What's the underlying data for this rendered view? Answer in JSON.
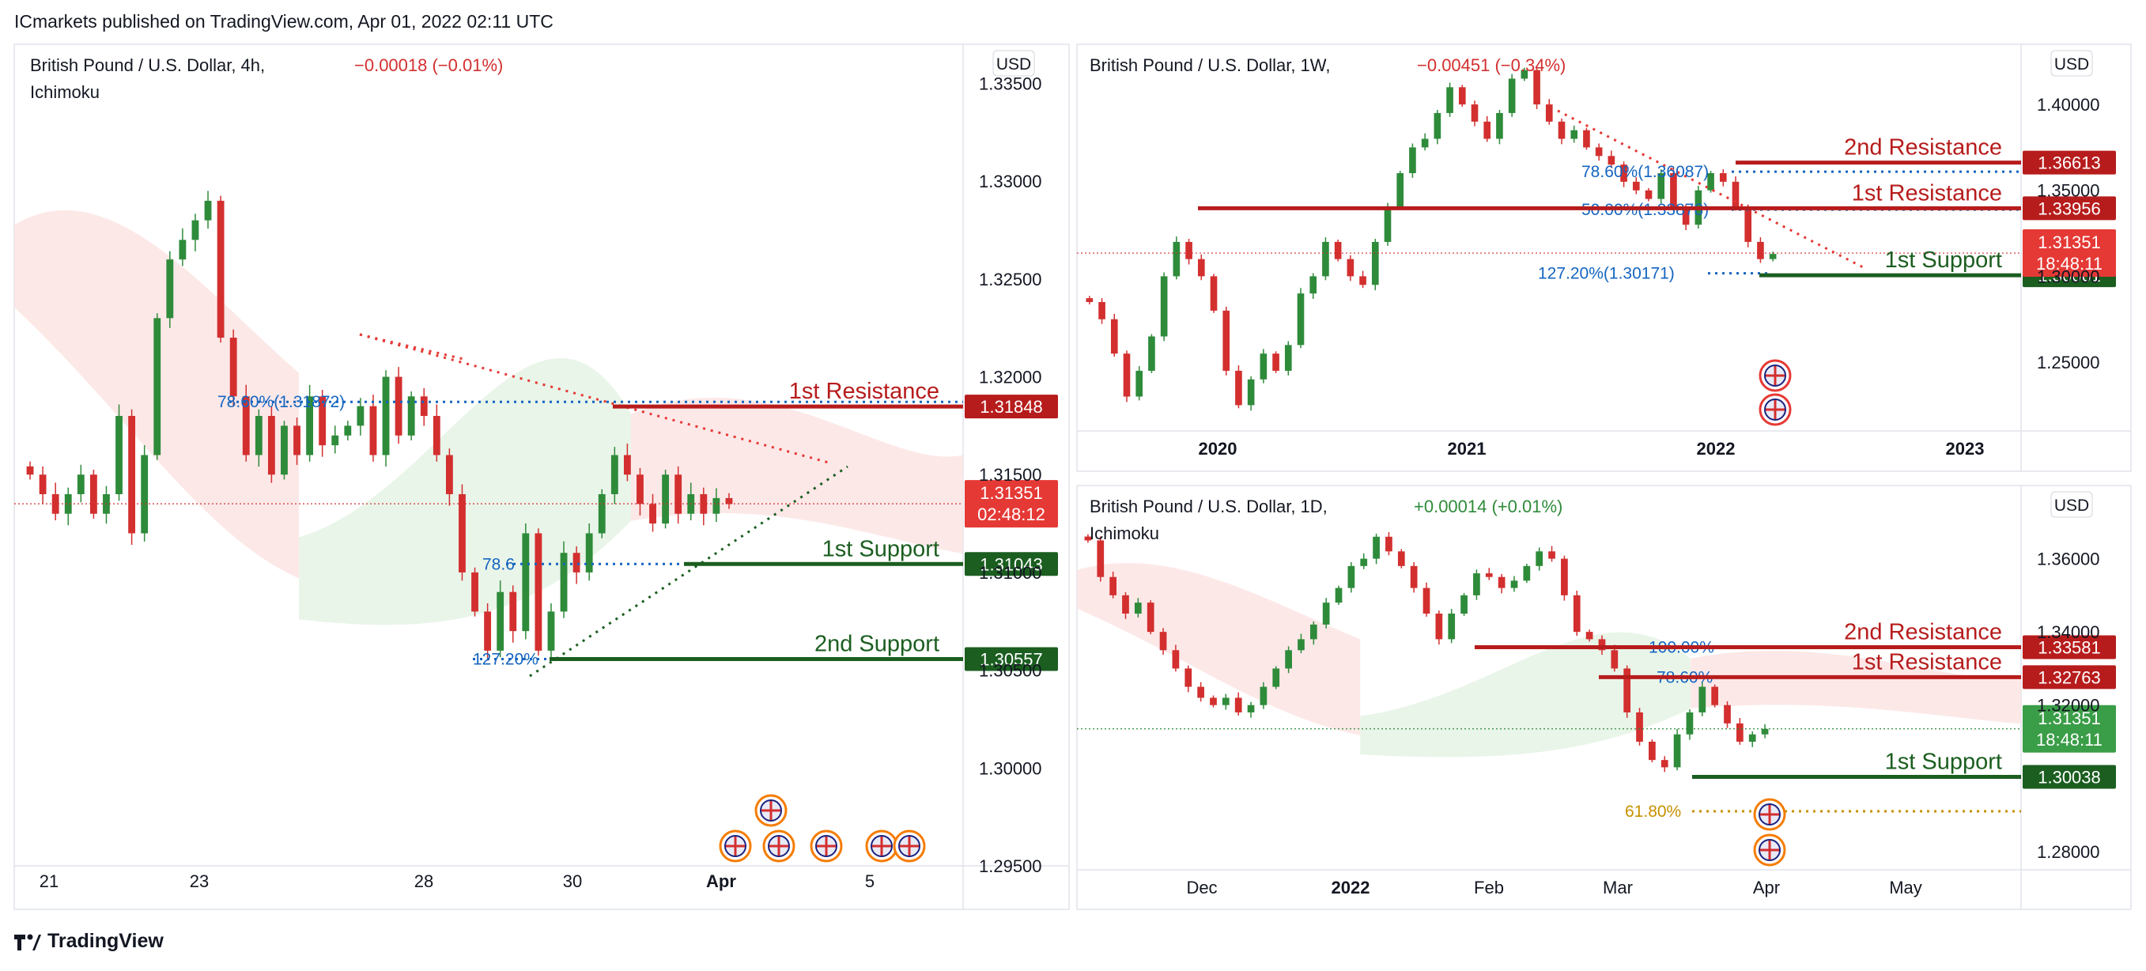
{
  "header": {
    "publisher_text": "ICmarkets published on TradingView.com, Apr 01, 2022 02:11 UTC"
  },
  "footer": {
    "brand": "TradingView",
    "logo_icon": "tradingview-logo-icon"
  },
  "colors": {
    "up": "#2e8b3a",
    "down": "#d32f2f",
    "resistance": "#b71c1c",
    "support": "#1b5e20",
    "fib": "#1565c0",
    "fib_gold": "#c79100",
    "cloud_red": "#fde2e2",
    "cloud_green": "#e3f3e3"
  },
  "chart_data": [
    {
      "panel": "left",
      "type": "candlestick",
      "symbol": "British Pound / U.S. Dollar, 4h,",
      "indicator": "Ichimoku",
      "change": "−0.00018 (−0.01%)",
      "currency": "USD",
      "y_ticks": [
        "1.33500",
        "1.33000",
        "1.32500",
        "1.32000",
        "1.31500",
        "1.31000",
        "1.30500",
        "1.30000",
        "1.29500"
      ],
      "ylim": [
        1.295,
        1.337
      ],
      "x_ticks": [
        "21",
        "23",
        "28",
        "30",
        "Apr",
        "5"
      ],
      "current_price": {
        "value": "1.31351",
        "countdown": "02:48:12"
      },
      "levels": [
        {
          "name": "1st Resistance",
          "value": 1.31848,
          "label": "1.31848",
          "kind": "resistance"
        },
        {
          "name": "1st Support",
          "value": 1.31043,
          "label": "1.31043",
          "kind": "support"
        },
        {
          "name": "2nd Support",
          "value": 1.30557,
          "label": "1.30557",
          "kind": "support"
        }
      ],
      "fib_labels": [
        "78.60%(1.31872)",
        "78.6",
        "127.20%"
      ],
      "close_path": [
        1.315,
        1.314,
        1.313,
        1.314,
        1.315,
        1.313,
        1.314,
        1.318,
        1.312,
        1.316,
        1.323,
        1.326,
        1.327,
        1.328,
        1.329,
        1.322,
        1.319,
        1.316,
        1.318,
        1.315,
        1.3175,
        1.316,
        1.319,
        1.3165,
        1.317,
        1.3175,
        1.3185,
        1.316,
        1.32,
        1.317,
        1.319,
        1.318,
        1.316,
        1.314,
        1.31,
        1.308,
        1.306,
        1.309,
        1.307,
        1.312,
        1.306,
        1.308,
        1.311,
        1.31,
        1.312,
        1.314,
        1.316,
        1.315,
        1.3135,
        1.3125,
        1.315,
        1.313,
        1.314,
        1.313,
        1.3138,
        1.3135
      ]
    },
    {
      "panel": "top-right",
      "type": "candlestick",
      "symbol": "British Pound / U.S. Dollar, 1W,",
      "change": "−0.00451 (−0.34%)",
      "currency": "USD",
      "y_ticks": [
        "1.40000",
        "1.35000",
        "1.30000",
        "1.25000"
      ],
      "ylim": [
        1.21,
        1.435
      ],
      "x_ticks": [
        "2020",
        "2021",
        "2022",
        "2023"
      ],
      "current_price": {
        "value": "1.31351",
        "countdown": "18:48:11"
      },
      "levels": [
        {
          "name": "2nd Resistance",
          "value": 1.36613,
          "label": "1.36613",
          "kind": "resistance"
        },
        {
          "name": "1st Resistance",
          "value": 1.33956,
          "label": "1.33956",
          "kind": "resistance"
        },
        {
          "name": "1st Support",
          "value": 1.30061,
          "label": "1.30061",
          "kind": "support"
        }
      ],
      "fib_labels": [
        "78.60%(1.36087)",
        "50.00%(1.33878)",
        "127.20%(1.30171)"
      ],
      "close_path": [
        1.285,
        1.275,
        1.255,
        1.23,
        1.245,
        1.265,
        1.3,
        1.32,
        1.31,
        1.3,
        1.28,
        1.245,
        1.225,
        1.24,
        1.255,
        1.245,
        1.26,
        1.29,
        1.3,
        1.32,
        1.31,
        1.3,
        1.295,
        1.32,
        1.34,
        1.36,
        1.375,
        1.38,
        1.395,
        1.41,
        1.4,
        1.39,
        1.38,
        1.395,
        1.415,
        1.42,
        1.4,
        1.39,
        1.38,
        1.385,
        1.375,
        1.37,
        1.365,
        1.355,
        1.35,
        1.345,
        1.36,
        1.34,
        1.33,
        1.35,
        1.36,
        1.355,
        1.34,
        1.32,
        1.31,
        1.313
      ]
    },
    {
      "panel": "bottom-right",
      "type": "candlestick",
      "symbol": "British Pound / U.S. Dollar, 1D,",
      "indicator": "Ichimoku",
      "change": "+0.00014 (+0.01%)",
      "currency": "USD",
      "y_ticks": [
        "1.36000",
        "1.34000",
        "1.32000",
        "1.28000"
      ],
      "ylim": [
        1.275,
        1.38
      ],
      "x_ticks": [
        "Dec",
        "2022",
        "Feb",
        "Mar",
        "Apr",
        "May"
      ],
      "current_price": {
        "value": "1.31351",
        "countdown": "18:48:11"
      },
      "levels": [
        {
          "name": "2nd Resistance",
          "value": 1.33581,
          "label": "1.33581",
          "kind": "resistance"
        },
        {
          "name": "1st Resistance",
          "value": 1.32763,
          "label": "1.32763",
          "kind": "resistance"
        },
        {
          "name": "1st Support",
          "value": 1.30038,
          "label": "1.30038",
          "kind": "support"
        }
      ],
      "fib_labels": [
        "100.00%",
        "78.60%",
        "61.80%"
      ],
      "close_path": [
        1.365,
        1.355,
        1.35,
        1.345,
        1.348,
        1.34,
        1.335,
        1.33,
        1.325,
        1.322,
        1.32,
        1.322,
        1.318,
        1.32,
        1.325,
        1.33,
        1.335,
        1.338,
        1.342,
        1.348,
        1.352,
        1.358,
        1.36,
        1.366,
        1.362,
        1.358,
        1.352,
        1.345,
        1.338,
        1.345,
        1.35,
        1.356,
        1.355,
        1.352,
        1.354,
        1.358,
        1.362,
        1.36,
        1.35,
        1.34,
        1.338,
        1.335,
        1.33,
        1.318,
        1.31,
        1.305,
        1.303,
        1.312,
        1.318,
        1.325,
        1.32,
        1.315,
        1.31,
        1.312,
        1.3135
      ]
    }
  ]
}
